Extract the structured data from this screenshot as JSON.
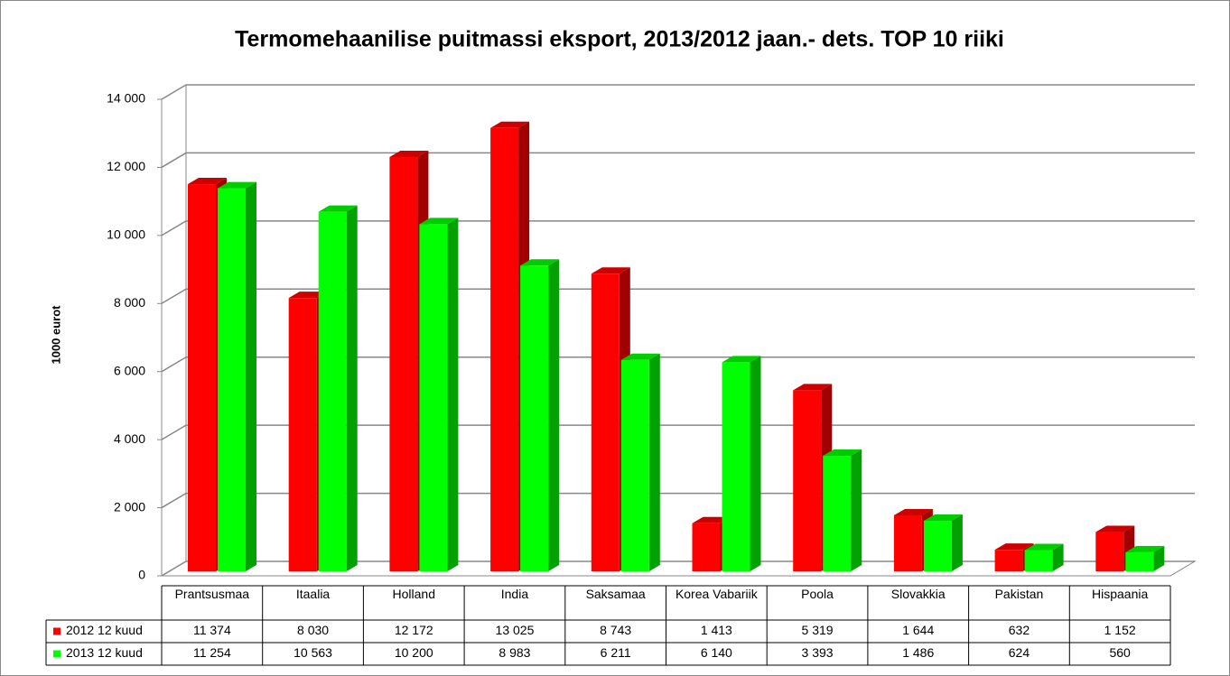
{
  "chart_data": {
    "type": "bar3d",
    "title": "Termomehaanilise puitmassi eksport, 2013/2012 jaan.- dets. TOP 10 riiki",
    "ylabel": "1000 eurot",
    "categories": [
      "Prantsusmaa",
      "Itaalia",
      "Holland",
      "India",
      "Saksamaa",
      "Korea Vabariik",
      "Poola",
      "Slovakkia",
      "Pakistan",
      "Hispaania"
    ],
    "series": [
      {
        "name": "2012 12 kuud",
        "color": "#ff0000",
        "values": [
          11374,
          8030,
          12172,
          13025,
          8743,
          1413,
          5319,
          1644,
          632,
          1152
        ],
        "value_labels": [
          "11 374",
          "8 030",
          "12 172",
          "13 025",
          "8 743",
          "1 413",
          "5 319",
          "1 644",
          "632",
          "1 152"
        ]
      },
      {
        "name": "2013 12 kuud",
        "color": "#00ff00",
        "values": [
          11254,
          10563,
          10200,
          8983,
          6211,
          6140,
          3393,
          1486,
          624,
          560
        ],
        "value_labels": [
          "11 254",
          "10 563",
          "10 200",
          "8 983",
          "6 211",
          "6 140",
          "3 393",
          "1 486",
          "624",
          "560"
        ]
      }
    ],
    "ylim": [
      0,
      14000
    ],
    "yticks": [
      0,
      {
        "value": 2000,
        "label": "2 000"
      },
      {
        "value": 4000,
        "label": "4 000"
      },
      {
        "value": 6000,
        "label": "6 000"
      },
      {
        "value": 8000,
        "label": "8 000"
      },
      {
        "value": 10000,
        "label": "10 000"
      },
      {
        "value": 12000,
        "label": "12 000"
      },
      {
        "value": 14000,
        "label": "14 000"
      }
    ],
    "grid": true
  }
}
